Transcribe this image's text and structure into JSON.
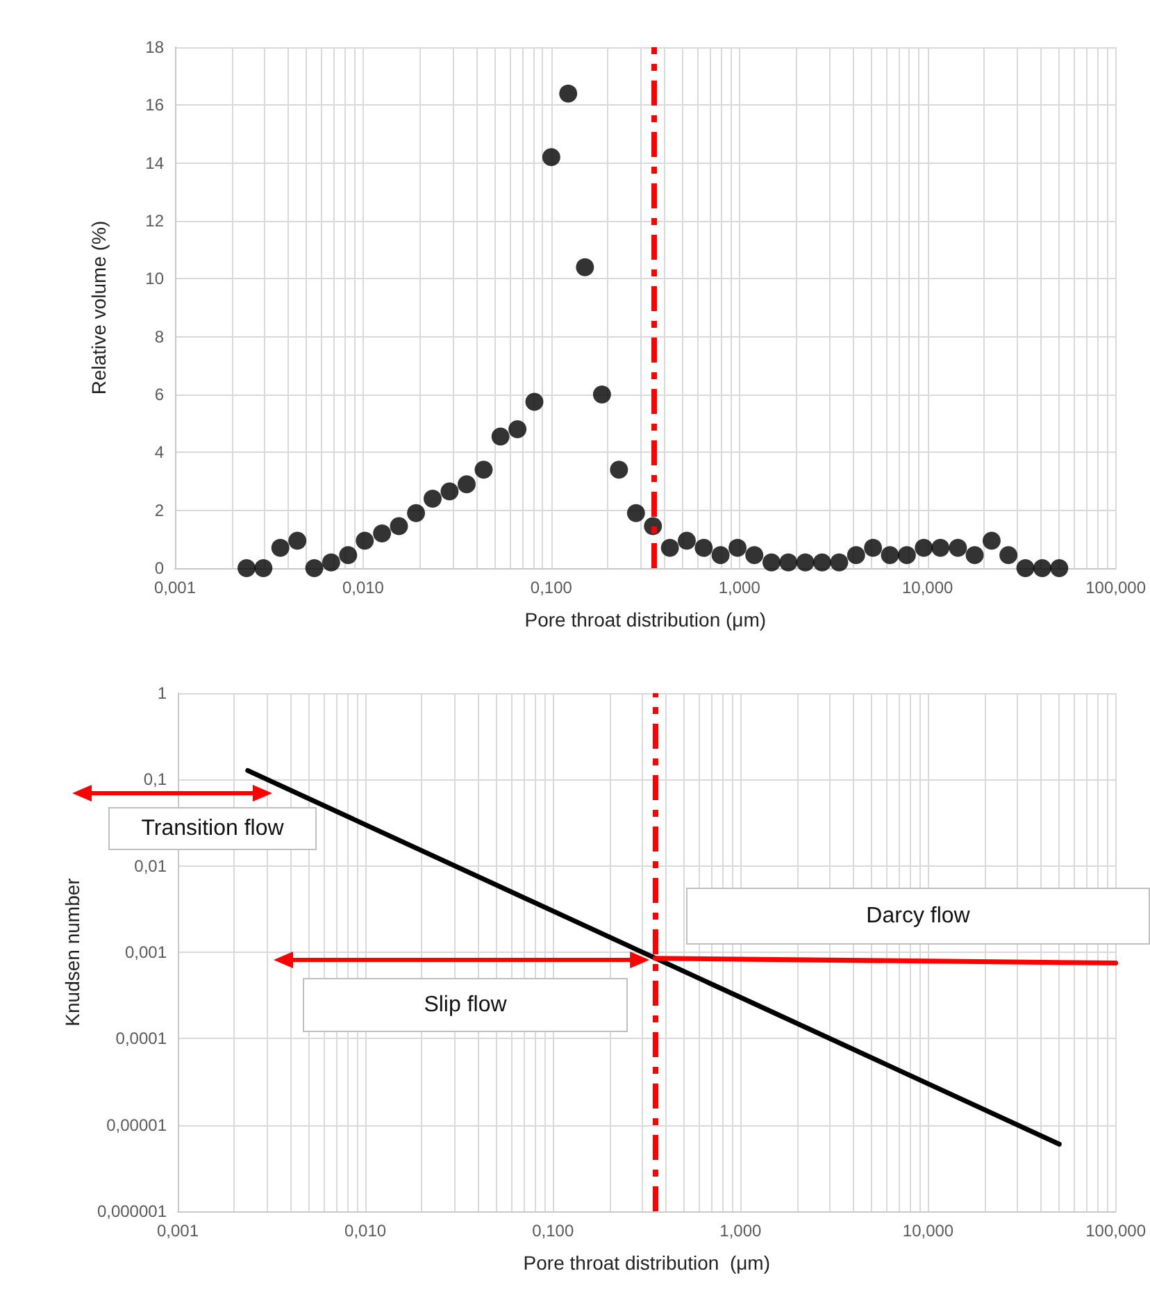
{
  "chart_data": [
    {
      "type": "scatter",
      "xlabel": "Pore throat distribution (μm)",
      "ylabel": "Relative volume (%)",
      "log": "x",
      "grid": true,
      "marker": "circle",
      "x": [
        0.0024,
        0.00295,
        0.00363,
        0.00447,
        0.0055,
        0.00676,
        0.00832,
        0.0102,
        0.0126,
        0.0155,
        0.0191,
        0.0234,
        0.0288,
        0.0355,
        0.0437,
        0.0537,
        0.0661,
        0.0813,
        0.1,
        0.123,
        0.151,
        0.186,
        0.229,
        0.282,
        0.347,
        0.427,
        0.525,
        0.646,
        0.794,
        0.977,
        1.2,
        1.48,
        1.82,
        2.24,
        2.75,
        3.39,
        4.17,
        5.13,
        6.31,
        7.76,
        9.55,
        11.7,
        14.5,
        17.8,
        21.9,
        26.9,
        33.1,
        40.7,
        50.1
      ],
      "series": [
        {
          "color": "#000000",
          "values": [
            0,
            0,
            0.7,
            0.95,
            0,
            0.2,
            0.45,
            0.95,
            1.2,
            1.45,
            1.9,
            2.4,
            2.65,
            2.9,
            3.4,
            4.55,
            4.8,
            5.75,
            14.2,
            16.4,
            10.4,
            6.0,
            3.4,
            1.9,
            1.45,
            0.7,
            0.95,
            0.7,
            0.45,
            0.7,
            0.45,
            0.2,
            0.2,
            0.2,
            0.2,
            0.2,
            0.45,
            0.7,
            0.45,
            0.45,
            0.7,
            0.7,
            0.7,
            0.45,
            0.95,
            0.45,
            0,
            0,
            0
          ]
        }
      ],
      "xlim": [
        0.001,
        100
      ],
      "xticks": [
        {
          "value": 0.001,
          "label": "0,001"
        },
        {
          "value": 0.002,
          "label": null
        },
        {
          "value": 0.003,
          "label": null
        },
        {
          "value": 0.004,
          "label": null
        },
        {
          "value": 0.005,
          "label": null
        },
        {
          "value": 0.006,
          "label": null
        },
        {
          "value": 0.007,
          "label": null
        },
        {
          "value": 0.008,
          "label": null
        },
        {
          "value": 0.009,
          "label": null
        },
        {
          "value": 0.01,
          "label": "0,010"
        },
        {
          "value": 0.02,
          "label": null
        },
        {
          "value": 0.03,
          "label": null
        },
        {
          "value": 0.04,
          "label": null
        },
        {
          "value": 0.05,
          "label": null
        },
        {
          "value": 0.06,
          "label": null
        },
        {
          "value": 0.07,
          "label": null
        },
        {
          "value": 0.08,
          "label": null
        },
        {
          "value": 0.09,
          "label": null
        },
        {
          "value": 0.1,
          "label": "0,100"
        },
        {
          "value": 0.2,
          "label": null
        },
        {
          "value": 0.3,
          "label": null
        },
        {
          "value": 0.4,
          "label": null
        },
        {
          "value": 0.5,
          "label": null
        },
        {
          "value": 0.6,
          "label": null
        },
        {
          "value": 0.7,
          "label": null
        },
        {
          "value": 0.8,
          "label": null
        },
        {
          "value": 0.9,
          "label": null
        },
        {
          "value": 1,
          "label": "1,000"
        },
        {
          "value": 2,
          "label": null
        },
        {
          "value": 3,
          "label": null
        },
        {
          "value": 4,
          "label": null
        },
        {
          "value": 5,
          "label": null
        },
        {
          "value": 6,
          "label": null
        },
        {
          "value": 7,
          "label": null
        },
        {
          "value": 8,
          "label": null
        },
        {
          "value": 9,
          "label": null
        },
        {
          "value": 10,
          "label": "10,000"
        },
        {
          "value": 20,
          "label": null
        },
        {
          "value": 30,
          "label": null
        },
        {
          "value": 40,
          "label": null
        },
        {
          "value": 50,
          "label": null
        },
        {
          "value": 60,
          "label": null
        },
        {
          "value": 70,
          "label": null
        },
        {
          "value": 80,
          "label": null
        },
        {
          "value": 90,
          "label": null
        },
        {
          "value": 100,
          "label": "100,000"
        }
      ],
      "ylim": [
        0,
        18
      ],
      "yticks": [
        0,
        2,
        4,
        6,
        8,
        10,
        12,
        14,
        16,
        18
      ],
      "ref_lines": [
        {
          "axis": "x",
          "value": 0.35,
          "color": "#ff0000",
          "line_style": "dashed"
        }
      ]
    },
    {
      "type": "line",
      "xlabel": "Pore throat distribution  (μm)",
      "ylabel": "Knudsen number",
      "log": "xy",
      "grid": true,
      "marker": "none",
      "line_style": "solid",
      "x": [
        0.00236,
        0.01,
        0.1,
        1,
        10,
        50
      ],
      "series": [
        {
          "color": "#000000",
          "values": [
            0.127,
            0.03,
            0.003,
            0.0003,
            3e-05,
            6e-06
          ]
        },
        {
          "color": "#ff0000",
          "x": [
            0.35,
            100
          ],
          "values": [
            0.00085,
            0.00075
          ]
        }
      ],
      "xlim": [
        0.001,
        100
      ],
      "xticks": [
        {
          "value": 0.001,
          "label": "0,001"
        },
        {
          "value": 0.002,
          "label": null
        },
        {
          "value": 0.003,
          "label": null
        },
        {
          "value": 0.004,
          "label": null
        },
        {
          "value": 0.005,
          "label": null
        },
        {
          "value": 0.006,
          "label": null
        },
        {
          "value": 0.007,
          "label": null
        },
        {
          "value": 0.008,
          "label": null
        },
        {
          "value": 0.009,
          "label": null
        },
        {
          "value": 0.01,
          "label": "0,010"
        },
        {
          "value": 0.02,
          "label": null
        },
        {
          "value": 0.03,
          "label": null
        },
        {
          "value": 0.04,
          "label": null
        },
        {
          "value": 0.05,
          "label": null
        },
        {
          "value": 0.06,
          "label": null
        },
        {
          "value": 0.07,
          "label": null
        },
        {
          "value": 0.08,
          "label": null
        },
        {
          "value": 0.09,
          "label": null
        },
        {
          "value": 0.1,
          "label": "0,100"
        },
        {
          "value": 0.2,
          "label": null
        },
        {
          "value": 0.3,
          "label": null
        },
        {
          "value": 0.4,
          "label": null
        },
        {
          "value": 0.5,
          "label": null
        },
        {
          "value": 0.6,
          "label": null
        },
        {
          "value": 0.7,
          "label": null
        },
        {
          "value": 0.8,
          "label": null
        },
        {
          "value": 0.9,
          "label": null
        },
        {
          "value": 1,
          "label": "1,000"
        },
        {
          "value": 2,
          "label": null
        },
        {
          "value": 3,
          "label": null
        },
        {
          "value": 4,
          "label": null
        },
        {
          "value": 5,
          "label": null
        },
        {
          "value": 6,
          "label": null
        },
        {
          "value": 7,
          "label": null
        },
        {
          "value": 8,
          "label": null
        },
        {
          "value": 9,
          "label": null
        },
        {
          "value": 10,
          "label": "10,000"
        },
        {
          "value": 20,
          "label": null
        },
        {
          "value": 30,
          "label": null
        },
        {
          "value": 40,
          "label": null
        },
        {
          "value": 50,
          "label": null
        },
        {
          "value": 60,
          "label": null
        },
        {
          "value": 70,
          "label": null
        },
        {
          "value": 80,
          "label": null
        },
        {
          "value": 90,
          "label": null
        },
        {
          "value": 100,
          "label": "100,000"
        }
      ],
      "ylim": [
        1e-06,
        1
      ],
      "yticks": [
        {
          "value": 1e-06,
          "label": "0,000001"
        },
        {
          "value": 1e-05,
          "label": "0,00001"
        },
        {
          "value": 0.0001,
          "label": "0,0001"
        },
        {
          "value": 0.001,
          "label": "0,001"
        },
        {
          "value": 0.01,
          "label": "0,01"
        },
        {
          "value": 0.1,
          "label": "0,1"
        },
        1
      ],
      "ref_lines": [
        {
          "axis": "x",
          "value": 0.35,
          "color": "#ff0000",
          "line_style": "dashed"
        }
      ],
      "annotations": [
        "Transition flow",
        "Darcy flow",
        "Slip flow"
      ]
    }
  ]
}
